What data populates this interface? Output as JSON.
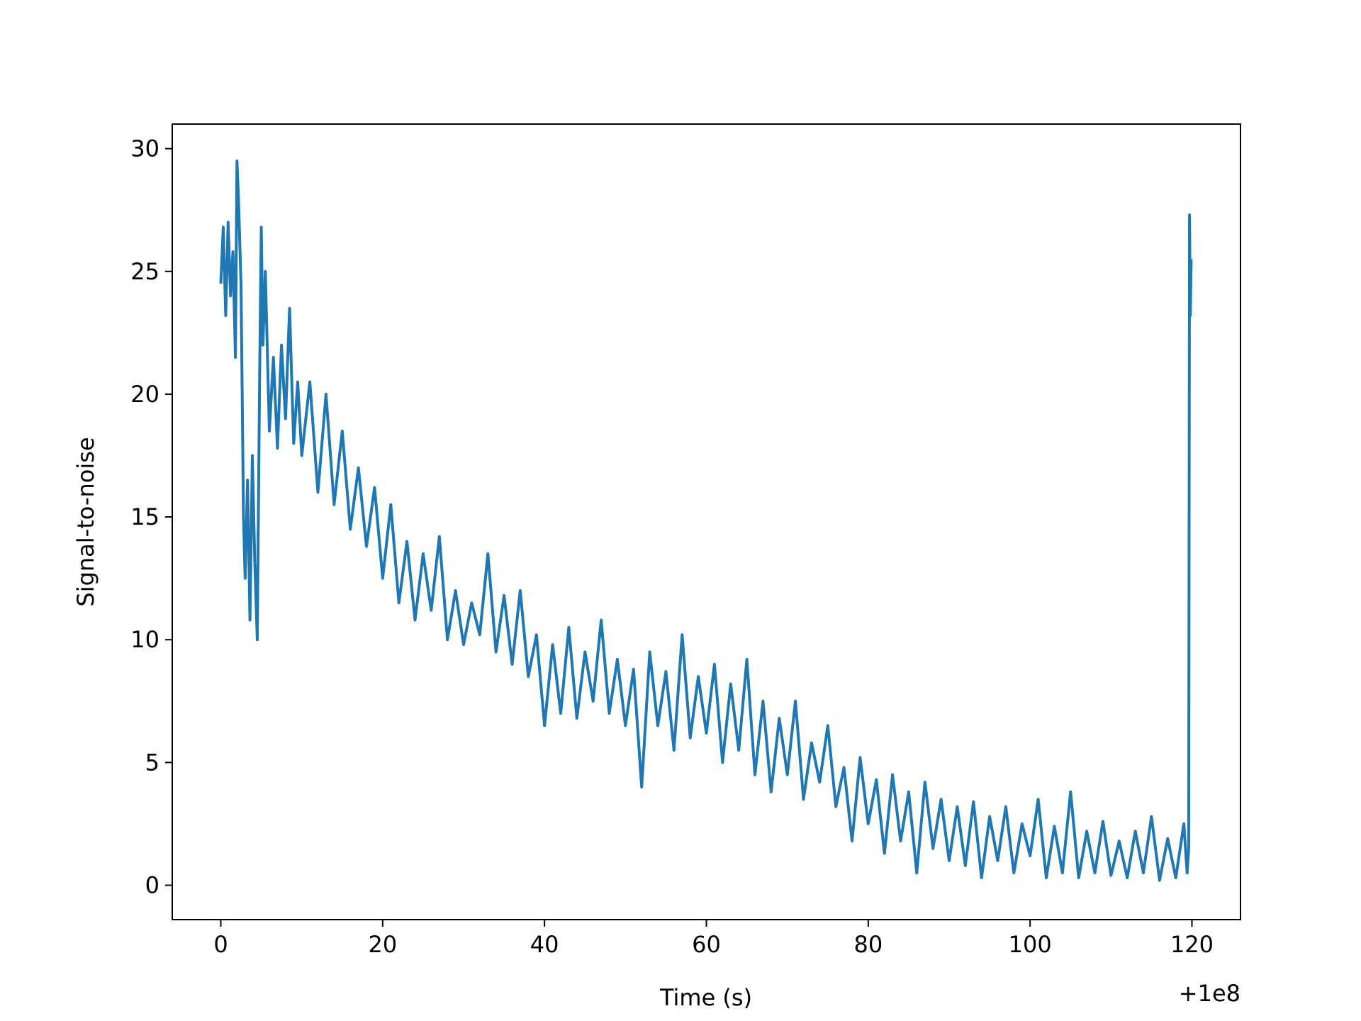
{
  "chart_data": {
    "type": "line",
    "xlabel": "Time (s)",
    "ylabel": "Signal-to-noise",
    "x_offset_label": "+1e8",
    "xlim": [
      -6,
      126
    ],
    "ylim": [
      -1.4,
      31.0
    ],
    "xticks": [
      0,
      20,
      40,
      60,
      80,
      100,
      120
    ],
    "yticks": [
      0,
      5,
      10,
      15,
      20,
      25,
      30
    ],
    "x": [
      0,
      0.3,
      0.6,
      0.9,
      1.2,
      1.5,
      1.8,
      2.0,
      2.2,
      2.5,
      2.8,
      3.0,
      3.3,
      3.6,
      3.9,
      4.2,
      4.5,
      4.8,
      5.0,
      5.2,
      5.5,
      6,
      6.5,
      7,
      7.5,
      8,
      8.5,
      9,
      9.5,
      10,
      11,
      12,
      13,
      14,
      15,
      16,
      17,
      18,
      19,
      20,
      21,
      22,
      23,
      24,
      25,
      26,
      27,
      28,
      29,
      30,
      31,
      32,
      33,
      34,
      35,
      36,
      37,
      38,
      39,
      40,
      41,
      42,
      43,
      44,
      45,
      46,
      47,
      48,
      49,
      50,
      51,
      52,
      53,
      54,
      55,
      56,
      57,
      58,
      59,
      60,
      61,
      62,
      63,
      64,
      65,
      66,
      67,
      68,
      69,
      70,
      71,
      72,
      73,
      74,
      75,
      76,
      77,
      78,
      79,
      80,
      81,
      82,
      83,
      84,
      85,
      86,
      87,
      88,
      89,
      90,
      91,
      92,
      93,
      94,
      95,
      96,
      97,
      98,
      99,
      100,
      101,
      102,
      103,
      104,
      105,
      106,
      107,
      108,
      109,
      110,
      111,
      112,
      113,
      114,
      115,
      116,
      117,
      118,
      119,
      119.4,
      119.6,
      119.7,
      119.8,
      119.9
    ],
    "series": [
      {
        "color": "#1f77b4",
        "values": [
          24.5,
          26.8,
          23.2,
          27,
          24,
          25.8,
          21.5,
          29.5,
          27.8,
          24.5,
          15,
          12.5,
          16.5,
          10.8,
          17.5,
          13.2,
          10,
          20.8,
          26.8,
          22,
          25,
          18.5,
          21.5,
          17.8,
          22,
          19,
          23.5,
          18,
          20.5,
          17.5,
          20.5,
          16,
          20,
          15.5,
          18.5,
          14.5,
          17,
          13.8,
          16.2,
          12.5,
          15.5,
          11.5,
          14,
          10.8,
          13.5,
          11.2,
          14.2,
          10,
          12,
          9.8,
          11.5,
          10.2,
          13.5,
          9.5,
          11.8,
          9,
          12,
          8.5,
          10.2,
          6.5,
          9.8,
          7,
          10.5,
          6.8,
          9.5,
          7.5,
          10.8,
          7,
          9.2,
          6.5,
          8.8,
          4,
          9.5,
          6.5,
          8.7,
          5.5,
          10.2,
          6,
          8.5,
          6.2,
          9,
          5,
          8.2,
          5.5,
          9.2,
          4.5,
          7.5,
          3.8,
          6.8,
          4.5,
          7.5,
          3.5,
          5.8,
          4.2,
          6.5,
          3.2,
          4.8,
          1.8,
          5.2,
          2.5,
          4.3,
          1.3,
          4.5,
          1.8,
          3.8,
          0.5,
          4.2,
          1.5,
          3.5,
          1,
          3.2,
          0.8,
          3.4,
          0.3,
          2.8,
          1,
          3.2,
          0.5,
          2.5,
          1.2,
          3.5,
          0.3,
          2.4,
          0.5,
          3.8,
          0.3,
          2.2,
          0.5,
          2.6,
          0.4,
          1.8,
          0.3,
          2.2,
          0.5,
          2.8,
          0.2,
          1.9,
          0.3,
          2.5,
          0.5,
          1.5,
          27.3,
          23.2,
          25.5
        ]
      }
    ]
  }
}
